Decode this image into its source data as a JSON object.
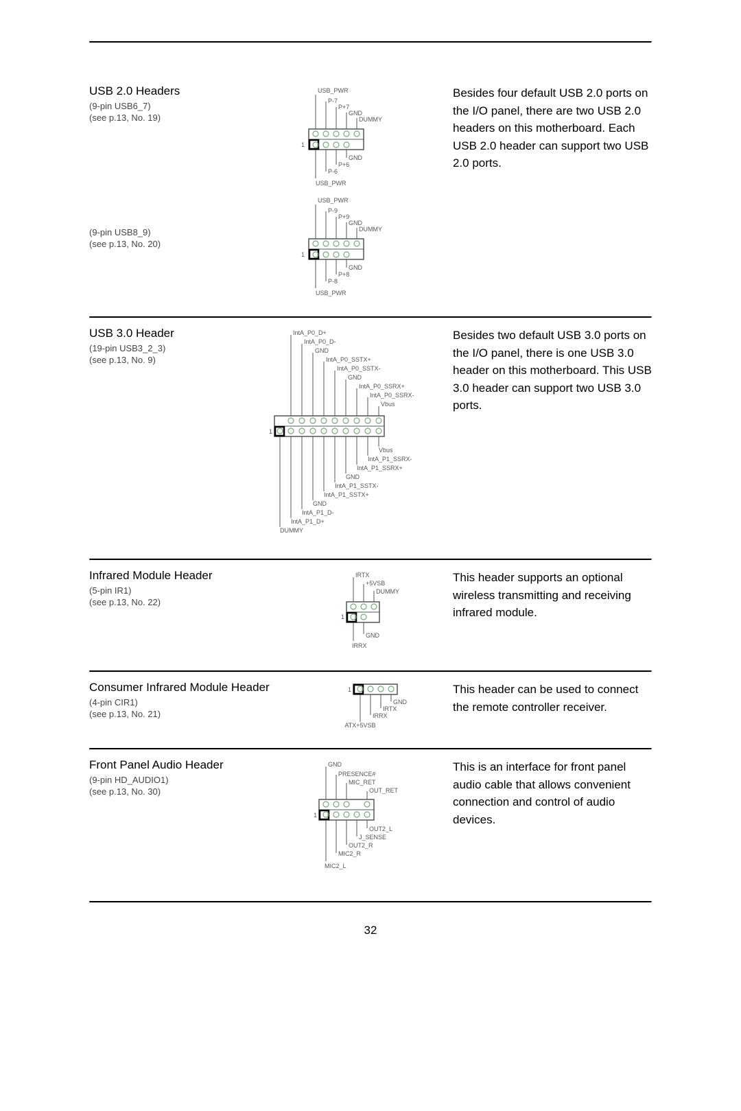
{
  "page_number": "32",
  "sections": {
    "usb20": {
      "title": "USB 2.0 Headers",
      "sub1": "(9-pin USB6_7)",
      "sub2": "(see p.13,  No. 19)",
      "second_sub1": "(9-pin USB8_9)",
      "second_sub2": "(see p.13,  No. 20)",
      "desc": "Besides four default USB 2.0 ports on the I/O panel, there are two USB 2.0 headers on this motherboard. Each USB 2.0 header can support two USB 2.0 ports.",
      "diagA": {
        "top": [
          "USB_PWR",
          "P-7",
          "P+7",
          "GND",
          "DUMMY"
        ],
        "bot": [
          "USB_PWR",
          "P-6",
          "P+6",
          "GND"
        ]
      },
      "diagB": {
        "top": [
          "USB_PWR",
          "P-9",
          "P+9",
          "GND",
          "DUMMY"
        ],
        "bot": [
          "USB_PWR",
          "P-8",
          "P+8",
          "GND"
        ]
      }
    },
    "usb30": {
      "title": "USB 3.0 Header",
      "sub1": "(19-pin USB3_2_3)",
      "sub2": "(see p.13,  No. 9)",
      "desc": "Besides two default USB 3.0 ports on the I/O panel, there is one USB 3.0 header on this motherboard. This USB 3.0 header can support two USB 3.0 ports.",
      "top_labels": [
        "IntA_P0_D+",
        "IntA_P0_D-",
        "GND",
        "IntA_P0_SSTX+",
        "IntA_P0_SSTX-",
        "GND",
        "IntA_P0_SSRX+",
        "IntA_P0_SSRX-",
        "Vbus"
      ],
      "bot_labels": [
        "DUMMY",
        "IntA_P1_D+",
        "IntA_P1_D-",
        "GND",
        "IntA_P1_SSTX+",
        "IntA_P1_SSTX-",
        "GND",
        "IntA_P1_SSRX+",
        "IntA_P1_SSRX-",
        "Vbus"
      ]
    },
    "ir": {
      "title": "Infrared Module Header",
      "sub1": "(5-pin IR1)",
      "sub2": "(see p.13,  No. 22)",
      "desc": "This header supports an optional wireless transmitting and receiving infrared module.",
      "top_labels": [
        "IRTX",
        "+5VSB",
        "DUMMY"
      ],
      "bot_labels": [
        "IRRX",
        "GND"
      ]
    },
    "cir": {
      "title": "Consumer Infrared Module Header",
      "sub1": "(4-pin CIR1)",
      "sub2": "(see p.13,  No. 21)",
      "desc": "This header can be used to connect the remote controller receiver.",
      "labels": [
        "ATX+5VSB",
        "IRRX",
        "IRTX",
        "GND"
      ]
    },
    "audio": {
      "title": "Front Panel Audio Header",
      "sub1": "(9-pin HD_AUDIO1)",
      "sub2": "(see p.13,  No. 30)",
      "desc": "This is an interface for front panel audio cable that allows convenient connection and control of audio devices.",
      "top_labels": [
        "GND",
        "PRESENCE#",
        "MIC_RET",
        "OUT_RET"
      ],
      "bot_labels": [
        "MIC2_L",
        "MIC2_R",
        "OUT2_R",
        "J_SENSE",
        "OUT2_L"
      ]
    }
  }
}
